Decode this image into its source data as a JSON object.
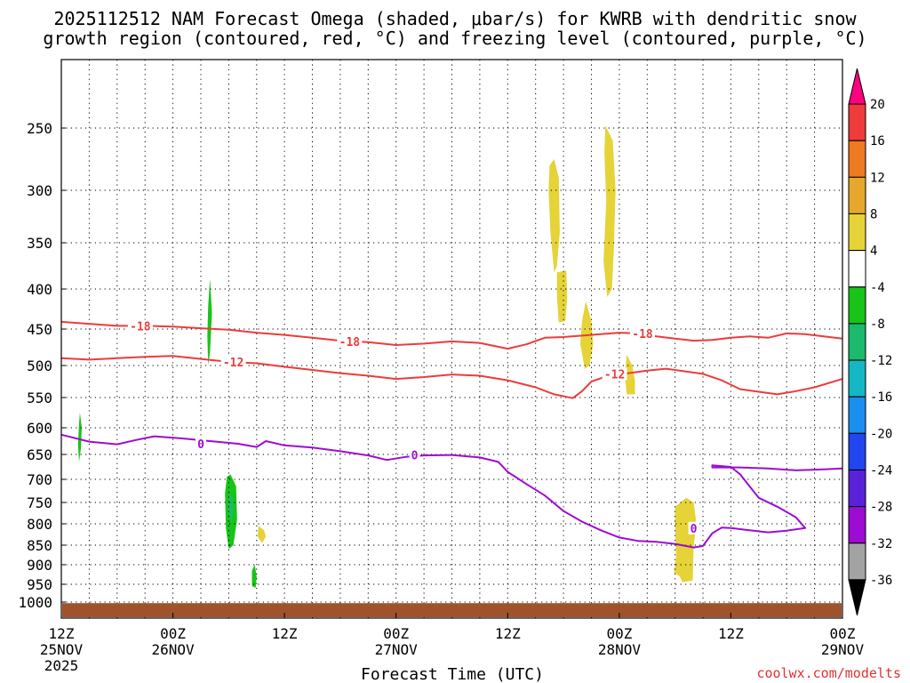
{
  "chart_data": {
    "type": "time-height cross section",
    "title_lines": [
      "2025112512 NAM Forecast Omega (shaded, μbar/s) for KWRB with dendritic snow",
      "growth region (contoured, red, °C) and freezing level (contoured, purple, °C)"
    ],
    "xlabel": "Forecast Time (UTC)",
    "credit": "coolwx.com/modelts",
    "x_range_hours": [
      0,
      84
    ],
    "y_range_hpa": [
      200,
      1050
    ],
    "x_ticks": [
      {
        "h": 0,
        "l1": "12Z",
        "l2": "25NOV",
        "l3": "2025"
      },
      {
        "h": 12,
        "l1": "00Z",
        "l2": "26NOV",
        "l3": ""
      },
      {
        "h": 24,
        "l1": "12Z",
        "l2": "",
        "l3": ""
      },
      {
        "h": 36,
        "l1": "00Z",
        "l2": "27NOV",
        "l3": ""
      },
      {
        "h": 48,
        "l1": "12Z",
        "l2": "",
        "l3": ""
      },
      {
        "h": 60,
        "l1": "00Z",
        "l2": "28NOV",
        "l3": ""
      },
      {
        "h": 72,
        "l1": "12Z",
        "l2": "",
        "l3": ""
      },
      {
        "h": 84,
        "l1": "00Z",
        "l2": "29NOV",
        "l3": ""
      }
    ],
    "y_ticks": [
      250,
      300,
      350,
      400,
      450,
      500,
      550,
      600,
      650,
      700,
      750,
      800,
      850,
      900,
      950,
      1000
    ],
    "colorbar": {
      "levels": [
        "20",
        "16",
        "12",
        "8",
        "4",
        "-4",
        "-8",
        "-12",
        "-16",
        "-20",
        "-24",
        "-28",
        "-32",
        "-36"
      ],
      "colors": [
        "#ff0080",
        "#ee3b3b",
        "#ee7a22",
        "#e6a82c",
        "#e5d338",
        "#ffffff",
        "#18c418",
        "#1bba6d",
        "#15b7c4",
        "#1b8ff0",
        "#2146f0",
        "#5a22d8",
        "#9d0cd2",
        "#a3a3a3",
        "#000000"
      ]
    },
    "ground_color": "#a0522d",
    "ground_pressure_hpa": 1003,
    "contours": [
      {
        "name": "-18C isotherm",
        "label": "-18",
        "color": "#ee3b3b",
        "points": [
          [
            0,
            441
          ],
          [
            6,
            446
          ],
          [
            9,
            446
          ],
          [
            12,
            447
          ],
          [
            15,
            449
          ],
          [
            18,
            451
          ],
          [
            21,
            455
          ],
          [
            24,
            458
          ],
          [
            27,
            462
          ],
          [
            30,
            466
          ],
          [
            33,
            468
          ],
          [
            36,
            472
          ],
          [
            39,
            470
          ],
          [
            42,
            467
          ],
          [
            45,
            469
          ],
          [
            48,
            477
          ],
          [
            50,
            471
          ],
          [
            52,
            462
          ],
          [
            54,
            461
          ],
          [
            56,
            459
          ],
          [
            58,
            457
          ],
          [
            60,
            455
          ],
          [
            62,
            456
          ],
          [
            64,
            460
          ],
          [
            66,
            463
          ],
          [
            68,
            466
          ],
          [
            70,
            465
          ],
          [
            72,
            462
          ],
          [
            74,
            460
          ],
          [
            76,
            462
          ],
          [
            78,
            456
          ],
          [
            80,
            457
          ],
          [
            82,
            460
          ],
          [
            84,
            463
          ]
        ],
        "label_at": [
          [
            8.5,
            446
          ],
          [
            31,
            467
          ],
          [
            62.5,
            456
          ]
        ]
      },
      {
        "name": "-12C isotherm",
        "label": "-12",
        "color": "#ee3b3b",
        "points": [
          [
            0,
            490
          ],
          [
            3,
            492
          ],
          [
            6,
            490
          ],
          [
            9,
            488
          ],
          [
            12,
            487
          ],
          [
            15,
            491
          ],
          [
            18,
            495
          ],
          [
            21,
            497
          ],
          [
            24,
            502
          ],
          [
            27,
            507
          ],
          [
            30,
            512
          ],
          [
            33,
            516
          ],
          [
            36,
            521
          ],
          [
            39,
            518
          ],
          [
            42,
            514
          ],
          [
            45,
            516
          ],
          [
            48,
            523
          ],
          [
            51,
            534
          ],
          [
            53,
            545
          ],
          [
            55,
            551
          ],
          [
            56,
            540
          ],
          [
            57,
            525
          ],
          [
            59,
            515
          ],
          [
            61,
            512
          ],
          [
            63,
            508
          ],
          [
            65,
            505
          ],
          [
            67,
            509
          ],
          [
            69,
            513
          ],
          [
            71,
            523
          ],
          [
            73,
            537
          ],
          [
            75,
            541
          ],
          [
            77,
            545
          ],
          [
            79,
            540
          ],
          [
            81,
            534
          ],
          [
            84,
            521
          ]
        ],
        "label_at": [
          [
            18.5,
            495
          ],
          [
            59.5,
            513
          ]
        ]
      },
      {
        "name": "0C freezing level",
        "label": "0",
        "color": "#9d0cd2",
        "points": [
          [
            0,
            613
          ],
          [
            3,
            626
          ],
          [
            6,
            631
          ],
          [
            8,
            623
          ],
          [
            10,
            616
          ],
          [
            13,
            620
          ],
          [
            16,
            625
          ],
          [
            19,
            630
          ],
          [
            21,
            636
          ],
          [
            22,
            625
          ],
          [
            24,
            633
          ],
          [
            27,
            637
          ],
          [
            30,
            644
          ],
          [
            33,
            652
          ],
          [
            35,
            661
          ],
          [
            37,
            655
          ],
          [
            39,
            652
          ],
          [
            42,
            651
          ],
          [
            45,
            656
          ],
          [
            47,
            665
          ],
          [
            48,
            685
          ],
          [
            50,
            710
          ],
          [
            52,
            735
          ],
          [
            54,
            770
          ],
          [
            56,
            795
          ],
          [
            58,
            815
          ],
          [
            60,
            832
          ],
          [
            62,
            840
          ],
          [
            64,
            842
          ],
          [
            66,
            847
          ],
          [
            68,
            856
          ],
          [
            69,
            852
          ],
          [
            70,
            822
          ],
          [
            71,
            809
          ],
          [
            72,
            810
          ],
          [
            74,
            815
          ],
          [
            76,
            820
          ],
          [
            78,
            816
          ],
          [
            80,
            810
          ],
          [
            79,
            785
          ],
          [
            77,
            760
          ],
          [
            75,
            740
          ],
          [
            74,
            715
          ],
          [
            73,
            690
          ],
          [
            72,
            675
          ],
          [
            70,
            672
          ],
          [
            70,
            676
          ],
          [
            73,
            676
          ],
          [
            76,
            678
          ],
          [
            79,
            682
          ],
          [
            82,
            680
          ],
          [
            84,
            678
          ]
        ],
        "label_at": [
          [
            15,
            630
          ],
          [
            38,
            651
          ],
          [
            68,
            810
          ]
        ]
      }
    ],
    "shaded_regions": [
      {
        "range": "-8 to -4",
        "color": "#18c418",
        "points": [
          [
            16,
            389
          ],
          [
            16.2,
            430
          ],
          [
            16,
            480
          ],
          [
            15.8,
            500
          ],
          [
            15.7,
            460
          ],
          [
            15.8,
            420
          ]
        ]
      },
      {
        "name": "-8 to -4 lower",
        "range": "-8 to -4",
        "color": "#18c418",
        "points": [
          [
            2,
            575
          ],
          [
            2.2,
            600
          ],
          [
            2.1,
            640
          ],
          [
            1.9,
            665
          ],
          [
            1.8,
            630
          ],
          [
            1.9,
            595
          ]
        ]
      },
      {
        "range": "-8 to -4",
        "color": "#18c418",
        "points": [
          [
            18.2,
            690
          ],
          [
            18.8,
            715
          ],
          [
            18.9,
            790
          ],
          [
            18.5,
            850
          ],
          [
            18,
            860
          ],
          [
            17.7,
            810
          ],
          [
            17.6,
            730
          ],
          [
            17.8,
            695
          ]
        ]
      },
      {
        "range": "-12 to -8",
        "color": "#1bba6d",
        "points": [
          [
            18.2,
            730
          ],
          [
            18.5,
            760
          ],
          [
            18.3,
            800
          ],
          [
            18.0,
            775
          ],
          [
            18.0,
            740
          ]
        ]
      },
      {
        "range": "-8 to -4",
        "color": "#18c418",
        "points": [
          [
            20.8,
            900
          ],
          [
            21,
            930
          ],
          [
            20.9,
            960
          ],
          [
            20.5,
            955
          ],
          [
            20.5,
            915
          ]
        ]
      },
      {
        "range": "4 to 8",
        "color": "#e5d338",
        "points": [
          [
            52.5,
            280
          ],
          [
            53.0,
            275
          ],
          [
            53.5,
            290
          ],
          [
            53.6,
            340
          ],
          [
            53.3,
            375
          ],
          [
            53.0,
            382
          ],
          [
            52.6,
            340
          ],
          [
            52.4,
            300
          ]
        ]
      },
      {
        "range": "4 to 8",
        "color": "#e5d338",
        "points": [
          [
            53.3,
            382
          ],
          [
            54.3,
            380
          ],
          [
            54.4,
            410
          ],
          [
            54.2,
            440
          ],
          [
            53.5,
            442
          ],
          [
            53.3,
            410
          ]
        ]
      },
      {
        "range": "4 to 8",
        "color": "#e5d338",
        "points": [
          [
            58.5,
            248
          ],
          [
            59.3,
            260
          ],
          [
            59.6,
            300
          ],
          [
            59.4,
            360
          ],
          [
            59.2,
            400
          ],
          [
            58.7,
            410
          ],
          [
            58.3,
            370
          ],
          [
            58.6,
            310
          ],
          [
            58.4,
            270
          ]
        ]
      },
      {
        "range": "4 to 8",
        "color": "#e5d338",
        "points": [
          [
            56.4,
            415
          ],
          [
            57,
            440
          ],
          [
            57.2,
            470
          ],
          [
            56.8,
            500
          ],
          [
            56.3,
            505
          ],
          [
            55.8,
            470
          ],
          [
            56.0,
            440
          ]
        ]
      },
      {
        "range": "4 to 8",
        "color": "#e5d338",
        "points": [
          [
            60.8,
            485
          ],
          [
            61.4,
            500
          ],
          [
            61.7,
            525
          ],
          [
            61.7,
            545
          ],
          [
            60.8,
            545
          ],
          [
            60.6,
            515
          ]
        ]
      },
      {
        "range": "4 to 8",
        "color": "#e5d338",
        "points": [
          [
            66,
            760
          ],
          [
            67.2,
            740
          ],
          [
            68,
            750
          ],
          [
            68.3,
            800
          ],
          [
            68,
            850
          ],
          [
            67.9,
            940
          ],
          [
            66.8,
            945
          ],
          [
            66.5,
            930
          ],
          [
            65.9,
            920
          ],
          [
            66.1,
            880
          ],
          [
            66,
            800
          ]
        ]
      },
      {
        "range": "4 to 8",
        "color": "#e5d338",
        "points": [
          [
            21.2,
            805
          ],
          [
            21.8,
            815
          ],
          [
            22,
            830
          ],
          [
            21.6,
            845
          ],
          [
            21.1,
            830
          ]
        ]
      }
    ]
  }
}
